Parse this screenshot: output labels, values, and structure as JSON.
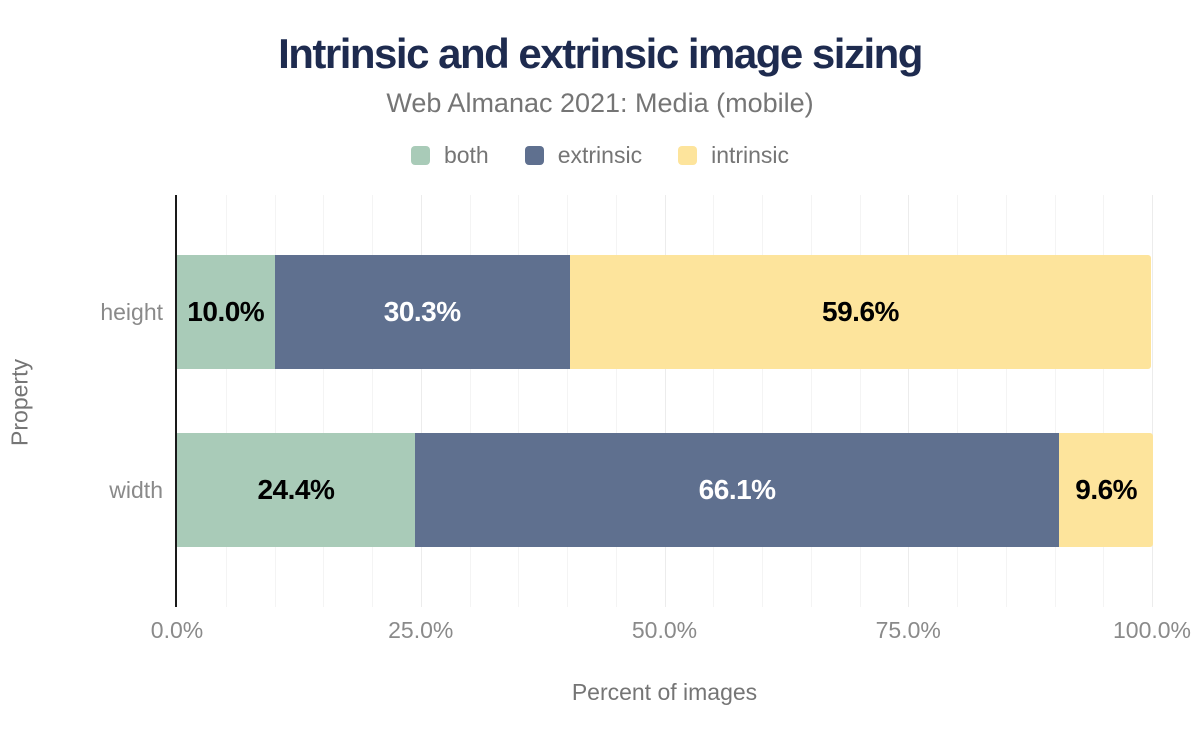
{
  "chart_data": {
    "type": "bar",
    "orientation": "horizontal-stacked",
    "title": "Intrinsic and extrinsic image sizing",
    "subtitle": "Web Almanac 2021: Media (mobile)",
    "xlabel": "Percent of images",
    "ylabel": "Property",
    "categories": [
      "height",
      "width"
    ],
    "series": [
      {
        "name": "both",
        "color": "#a9cbb8",
        "label_color": "#000000",
        "values": [
          10.0,
          24.4
        ],
        "display_values": [
          "10.0%",
          "24.4%"
        ]
      },
      {
        "name": "extrinsic",
        "color": "#5f708f",
        "label_color": "#ffffff",
        "values": [
          30.3,
          66.1
        ],
        "display_values": [
          "30.3%",
          "66.1%"
        ]
      },
      {
        "name": "intrinsic",
        "color": "#fde49c",
        "label_color": "#000000",
        "values": [
          59.6,
          9.6
        ],
        "display_values": [
          "59.6%",
          "9.6%"
        ]
      }
    ],
    "x_ticks": [
      "0.0%",
      "25.0%",
      "50.0%",
      "75.0%",
      "100.0%"
    ],
    "xlim": [
      0,
      100
    ],
    "grid": {
      "minor_step": 5,
      "major_step": 25,
      "direction": "vertical"
    },
    "legend_position": "top-center",
    "colors": {
      "background": "#ffffff",
      "title_text": "#1e2b4f",
      "subtitle_text": "#757575",
      "tick_text": "#8a8a8a",
      "axis_line": "#1a1a1a",
      "grid_minor": "#f4f4f4",
      "grid_major": "#ececec"
    }
  }
}
